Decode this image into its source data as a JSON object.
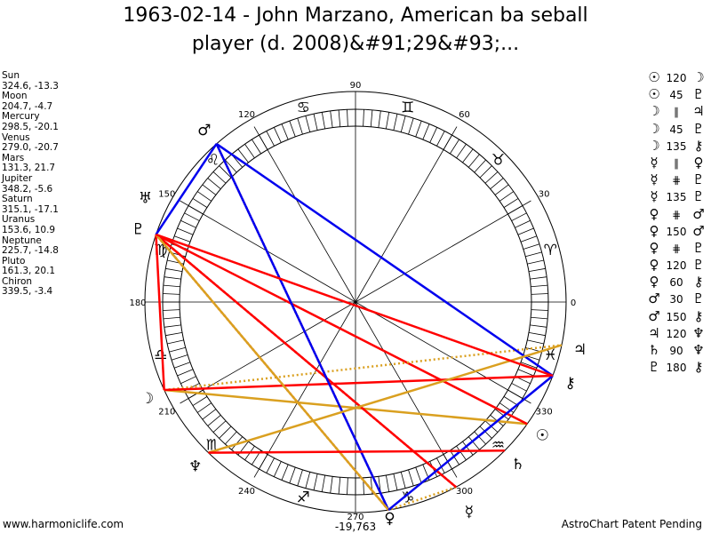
{
  "title": "1963-02-14 - John Marzano, American ba seball player (d. 2008)&#91;29&#93;...",
  "footer": {
    "left": "www.harmoniclife.com",
    "center": "-19,763",
    "right": "AstroChart Patent Pending"
  },
  "chart_data": {
    "type": "astrological-wheel",
    "degree_labels": [
      "0",
      "30",
      "60",
      "90",
      "120",
      "150",
      "180",
      "210",
      "240",
      "270",
      "300",
      "330"
    ],
    "signs": [
      "♈",
      "♉",
      "♊",
      "♋",
      "♌",
      "♍",
      "♎",
      "♏",
      "♐",
      "♑",
      "♒",
      "♓"
    ],
    "planets": [
      {
        "name": "Sun",
        "glyph": "☉",
        "text": "324.6, -13.3",
        "lon": 324.6,
        "dec": -13.3
      },
      {
        "name": "Moon",
        "glyph": "☽",
        "text": "204.7, -4.7",
        "lon": 204.7,
        "dec": -4.7
      },
      {
        "name": "Mercury",
        "glyph": "☿",
        "text": "298.5, -20.1",
        "lon": 298.5,
        "dec": -20.1
      },
      {
        "name": "Venus",
        "glyph": "♀",
        "text": "279.0, -20.7",
        "lon": 279.0,
        "dec": -20.7
      },
      {
        "name": "Mars",
        "glyph": "♂",
        "text": "131.3, 21.7",
        "lon": 131.3,
        "dec": 21.7
      },
      {
        "name": "Jupiter",
        "glyph": "♃",
        "text": "348.2, -5.6",
        "lon": 348.2,
        "dec": -5.6
      },
      {
        "name": "Saturn",
        "glyph": "♄",
        "text": "315.1, -17.1",
        "lon": 315.1,
        "dec": -17.1
      },
      {
        "name": "Uranus",
        "glyph": "♅",
        "text": "153.6, 10.9",
        "lon": 153.6,
        "dec": 10.9
      },
      {
        "name": "Neptune",
        "glyph": "♆",
        "text": "225.7, -14.8",
        "lon": 225.7,
        "dec": -14.8
      },
      {
        "name": "Pluto",
        "glyph": "♇",
        "text": "161.3, 20.1",
        "lon": 161.3,
        "dec": 20.1
      },
      {
        "name": "Chiron",
        "glyph": "⚷",
        "text": "339.5, -3.4",
        "lon": 339.5,
        "dec": -3.4
      }
    ],
    "aspects": [
      {
        "p1": "Sun",
        "a": "120",
        "p2": "Moon"
      },
      {
        "p1": "Sun",
        "a": "45",
        "p2": "Pluto"
      },
      {
        "p1": "Moon",
        "a": "∥",
        "p2": "Jupiter"
      },
      {
        "p1": "Moon",
        "a": "45",
        "p2": "Pluto"
      },
      {
        "p1": "Moon",
        "a": "135",
        "p2": "Chiron"
      },
      {
        "p1": "Mercury",
        "a": "∥",
        "p2": "Venus"
      },
      {
        "p1": "Mercury",
        "a": "⋕",
        "p2": "Pluto"
      },
      {
        "p1": "Mercury",
        "a": "135",
        "p2": "Pluto"
      },
      {
        "p1": "Venus",
        "a": "⋕",
        "p2": "Mars"
      },
      {
        "p1": "Venus",
        "a": "150",
        "p2": "Mars"
      },
      {
        "p1": "Venus",
        "a": "⋕",
        "p2": "Pluto"
      },
      {
        "p1": "Venus",
        "a": "120",
        "p2": "Pluto"
      },
      {
        "p1": "Venus",
        "a": "60",
        "p2": "Chiron"
      },
      {
        "p1": "Mars",
        "a": "30",
        "p2": "Pluto"
      },
      {
        "p1": "Mars",
        "a": "150",
        "p2": "Chiron"
      },
      {
        "p1": "Jupiter",
        "a": "120",
        "p2": "Neptune"
      },
      {
        "p1": "Saturn",
        "a": "90",
        "p2": "Neptune"
      },
      {
        "p1": "Pluto",
        "a": "180",
        "p2": "Chiron"
      }
    ],
    "colors": {
      "blue": "#0000ee",
      "red": "#ff0000",
      "orange": "#daa020"
    }
  }
}
